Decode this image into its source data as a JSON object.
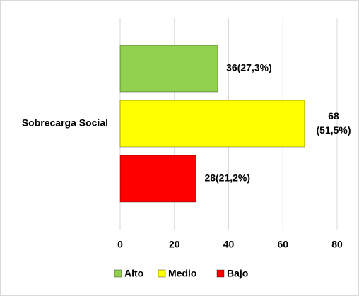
{
  "chart_data": {
    "type": "barh",
    "categories": [
      "Sobrecarga Social"
    ],
    "series": [
      {
        "name": "Alto",
        "color": "#92d050",
        "values": [
          36
        ],
        "value_labels": [
          "36(27,3%)"
        ]
      },
      {
        "name": "Medio",
        "color": "#ffff00",
        "values": [
          68
        ],
        "value_labels": [
          "68 (51,5%)"
        ]
      },
      {
        "name": "Bajo",
        "color": "#ff0000",
        "values": [
          28
        ],
        "value_labels": [
          "28(21,2%)"
        ]
      }
    ],
    "xlim": [
      0,
      80
    ],
    "xticks": [
      0,
      20,
      40,
      60,
      80
    ],
    "grid": true,
    "legend": "bottom"
  }
}
